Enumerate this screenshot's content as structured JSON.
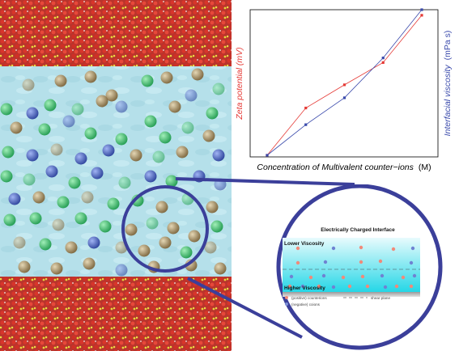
{
  "chart_data": {
    "type": "line",
    "xlabel_prefix": "Concentration of Multivalent counter−ions",
    "xlabel_unit": "(M)",
    "ylabel_left": "Zeta potential (mV)",
    "ylabel_right_prefix": "Interfacial viscosity",
    "ylabel_right_unit": "(mPa s)",
    "x": [
      0,
      1,
      2,
      3,
      4
    ],
    "series": [
      {
        "axis": "left",
        "color": "#e53935",
        "values": [
          0.0,
          0.51,
          0.76,
          1.0,
          1.51
        ]
      },
      {
        "axis": "right",
        "color": "#3949ab",
        "values": [
          0.0,
          0.33,
          0.62,
          1.05,
          1.57
        ]
      }
    ],
    "x_ticks": false,
    "y_ticks": false,
    "grid": false
  },
  "inset": {
    "title": "Electrically Charged Interface",
    "lower_label": "Lower Viscosity",
    "higher_label": "Higher Viscosity",
    "legend_positive": "(positive) counterions",
    "legend_negative": "(negative) coions",
    "legend_shear": "shear plane"
  },
  "colors": {
    "water": "#b8e2ec",
    "wall_red": "#c8312a",
    "wall_yellow": "#e0d23a",
    "sphere_green": "#3ab86a",
    "sphere_blue": "#3c56b8",
    "sphere_tan": "#a88a5a",
    "zoom_ring": "#3b3f9a"
  }
}
